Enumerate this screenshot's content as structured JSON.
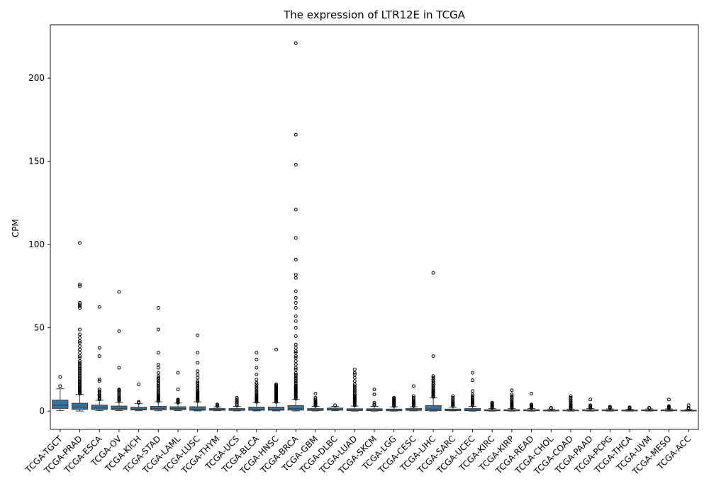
{
  "chart_data": {
    "type": "box",
    "title": "The expression of LTR12E in TCGA",
    "xlabel": "",
    "ylabel": "CPM",
    "ylim": [
      -11,
      232
    ],
    "yticks": [
      0,
      50,
      100,
      150,
      200
    ],
    "grid": false,
    "legend": "none",
    "box_color": "#3274a1",
    "categories": [
      "TCGA-TGCT",
      "TCGA-PRAD",
      "TCGA-ESCA",
      "TCGA-OV",
      "TCGA-KICH",
      "TCGA-STAD",
      "TCGA-LAML",
      "TCGA-LUSC",
      "TCGA-THYM",
      "TCGA-UCS",
      "TCGA-BLCA",
      "TCGA-HNSC",
      "TCGA-BRCA",
      "TCGA-GBM",
      "TCGA-DLBC",
      "TCGA-LUAD",
      "TCGA-SKCM",
      "TCGA-LGG",
      "TCGA-CESC",
      "TCGA-LIHC",
      "TCGA-SARC",
      "TCGA-UCEC",
      "TCGA-KIRC",
      "TCGA-KIRP",
      "TCGA-READ",
      "TCGA-CHOL",
      "TCGA-COAD",
      "TCGA-PAAD",
      "TCGA-PCPG",
      "TCGA-THCA",
      "TCGA-UVM",
      "TCGA-MESO",
      "TCGA-ACC"
    ],
    "boxes": [
      {
        "whislo": 0.3,
        "q1": 1.6,
        "med": 3.5,
        "q3": 6.6,
        "whishi": 13.4,
        "fliers": [
          15,
          20.5
        ]
      },
      {
        "whislo": 0.0,
        "q1": 1.0,
        "med": 2.5,
        "q3": 4.7,
        "whishi": 10.0,
        "fliers": [
          10.5,
          11,
          11.5,
          12,
          12.5,
          13,
          13.5,
          14,
          15,
          15.5,
          16,
          17,
          17.5,
          18,
          19,
          20,
          21,
          22,
          23,
          24,
          25,
          26,
          27,
          28,
          29,
          30,
          32,
          33,
          35,
          37,
          39,
          41,
          42,
          44,
          46,
          49,
          62,
          63,
          64,
          65,
          75,
          76,
          101
        ]
      },
      {
        "whislo": 0.3,
        "q1": 1.0,
        "med": 1.8,
        "q3": 3.6,
        "whishi": 6.5,
        "fliers": [
          7,
          7.5,
          8,
          9,
          9.5,
          10,
          11,
          12,
          13,
          18,
          19,
          33,
          38,
          62.5
        ]
      },
      {
        "whislo": 0.3,
        "q1": 0.9,
        "med": 1.6,
        "q3": 3.0,
        "whishi": 5.3,
        "fliers": [
          6,
          6.5,
          7,
          7.5,
          8,
          9,
          10,
          11,
          12,
          12.5,
          13,
          26,
          48,
          71.5
        ]
      },
      {
        "whislo": 0.2,
        "q1": 0.7,
        "med": 1.2,
        "q3": 2.3,
        "whishi": 4.5,
        "fliers": [
          5,
          5.5,
          16
        ]
      },
      {
        "whislo": 0.2,
        "q1": 0.8,
        "med": 1.5,
        "q3": 2.8,
        "whishi": 5.6,
        "fliers": [
          6,
          6.5,
          7,
          7.5,
          8,
          8.5,
          9,
          9.5,
          10,
          11,
          12,
          13,
          14,
          15,
          16,
          17,
          18,
          19,
          20,
          21,
          23,
          26,
          28,
          35,
          49,
          62
        ]
      },
      {
        "whislo": 0.3,
        "q1": 0.8,
        "med": 1.5,
        "q3": 2.6,
        "whishi": 4.8,
        "fliers": [
          5,
          5.5,
          6,
          6.5,
          7,
          13,
          23
        ]
      },
      {
        "whislo": 0.1,
        "q1": 0.5,
        "med": 1.2,
        "q3": 2.6,
        "whishi": 5.5,
        "fliers": [
          6,
          6.5,
          7,
          7.5,
          8,
          8.5,
          9,
          9.5,
          10,
          10.5,
          11,
          11.5,
          12,
          13,
          14,
          15,
          16,
          17,
          18,
          20,
          22,
          24,
          29,
          35,
          45.5
        ]
      },
      {
        "whislo": 0.2,
        "q1": 0.5,
        "med": 0.9,
        "q3": 1.5,
        "whishi": 2.5,
        "fliers": [
          3,
          3.5,
          4
        ]
      },
      {
        "whislo": 0.1,
        "q1": 0.4,
        "med": 0.8,
        "q3": 1.5,
        "whishi": 2.8,
        "fliers": [
          3.5,
          4,
          5,
          6,
          7,
          8
        ]
      },
      {
        "whislo": 0.1,
        "q1": 0.5,
        "med": 1.1,
        "q3": 2.4,
        "whishi": 5.0,
        "fliers": [
          5.5,
          6,
          6.5,
          7,
          7.5,
          8,
          8.5,
          9,
          9.5,
          10,
          11,
          12,
          13,
          14,
          15,
          16,
          17,
          19,
          22,
          26,
          31,
          35
        ]
      },
      {
        "whislo": 0.1,
        "q1": 0.5,
        "med": 1.1,
        "q3": 2.4,
        "whishi": 5.0,
        "fliers": [
          5.5,
          6,
          6.5,
          7,
          7.5,
          8,
          8.5,
          9,
          9.5,
          10,
          10.5,
          11,
          11.5,
          12,
          12.5,
          13,
          13.5,
          14,
          14.5,
          15,
          15.5,
          16,
          37
        ]
      },
      {
        "whislo": 0.1,
        "q1": 0.6,
        "med": 1.4,
        "q3": 3.3,
        "whishi": 7.0,
        "fliers": [
          7.5,
          8,
          8.5,
          9,
          9.5,
          10,
          10.5,
          11,
          11.5,
          12,
          12.5,
          13,
          13.5,
          14,
          14.5,
          15,
          16,
          17,
          18,
          19,
          20,
          21,
          22,
          23,
          25,
          26,
          28,
          30,
          32,
          33,
          35,
          36,
          38,
          40,
          45,
          50,
          54,
          57,
          62,
          65,
          68,
          72,
          80,
          82,
          91,
          104,
          121,
          148,
          166,
          221
        ]
      },
      {
        "whislo": 0.1,
        "q1": 0.4,
        "med": 0.8,
        "q3": 1.5,
        "whishi": 2.8,
        "fliers": [
          3.2,
          3.6,
          4,
          4.5,
          5,
          5.5,
          6,
          7,
          8,
          10.5
        ]
      },
      {
        "whislo": 0.2,
        "q1": 0.6,
        "med": 1.0,
        "q3": 1.8,
        "whishi": 2.8,
        "fliers": [
          3.5
        ]
      },
      {
        "whislo": 0.0,
        "q1": 0.3,
        "med": 0.7,
        "q3": 1.4,
        "whishi": 3.0,
        "fliers": [
          3.5,
          4,
          4.5,
          5,
          5.5,
          6,
          6.5,
          7,
          7.5,
          8,
          8.5,
          9,
          10,
          11,
          12,
          13,
          14,
          15,
          16,
          18,
          20,
          22,
          23,
          25
        ]
      },
      {
        "whislo": 0.0,
        "q1": 0.3,
        "med": 0.7,
        "q3": 1.4,
        "whishi": 2.8,
        "fliers": [
          3.5,
          4,
          5,
          10,
          13
        ]
      },
      {
        "whislo": 0.0,
        "q1": 0.2,
        "med": 0.6,
        "q3": 1.2,
        "whishi": 2.5,
        "fliers": [
          3,
          3.5,
          4,
          4.5,
          5,
          5.5,
          6,
          6.5,
          7,
          7.5,
          8
        ]
      },
      {
        "whislo": 0.1,
        "q1": 0.4,
        "med": 0.8,
        "q3": 1.5,
        "whishi": 2.5,
        "fliers": [
          3,
          3.5,
          4,
          4.5,
          5,
          5.5,
          6,
          7,
          8,
          9,
          15
        ]
      },
      {
        "whislo": 0.0,
        "q1": 0.3,
        "med": 1.2,
        "q3": 3.3,
        "whishi": 8.0,
        "fliers": [
          8.5,
          9,
          9.5,
          10,
          10.5,
          11,
          11.5,
          12,
          12.5,
          13,
          14,
          15,
          16,
          17,
          18,
          19,
          20,
          21,
          33,
          83
        ]
      },
      {
        "whislo": 0.1,
        "q1": 0.3,
        "med": 0.6,
        "q3": 1.2,
        "whishi": 2.3,
        "fliers": [
          3,
          3.5,
          4,
          4.5,
          5,
          6,
          7,
          8,
          9
        ]
      },
      {
        "whislo": 0.0,
        "q1": 0.3,
        "med": 0.7,
        "q3": 1.5,
        "whishi": 2.8,
        "fliers": [
          3.5,
          4,
          4.5,
          5,
          5.5,
          6,
          6.5,
          7,
          8,
          9,
          10,
          12,
          18.5,
          23
        ]
      },
      {
        "whislo": 0.0,
        "q1": 0.2,
        "med": 0.4,
        "q3": 0.8,
        "whishi": 1.5,
        "fliers": [
          2,
          2.5,
          3,
          3.5,
          4,
          4.5,
          5
        ]
      },
      {
        "whislo": 0.0,
        "q1": 0.2,
        "med": 0.4,
        "q3": 0.8,
        "whishi": 1.5,
        "fliers": [
          2,
          2.5,
          3,
          3.5,
          4,
          4.5,
          5,
          5.5,
          6,
          7,
          8,
          9,
          10,
          12.5
        ]
      },
      {
        "whislo": 0.0,
        "q1": 0.2,
        "med": 0.4,
        "q3": 0.8,
        "whishi": 1.5,
        "fliers": [
          2,
          2.5,
          3,
          3.5,
          4,
          10.5
        ]
      },
      {
        "whislo": 0.0,
        "q1": 0.1,
        "med": 0.3,
        "q3": 0.6,
        "whishi": 1.2,
        "fliers": [
          1.6,
          2
        ]
      },
      {
        "whislo": 0.0,
        "q1": 0.2,
        "med": 0.3,
        "q3": 0.6,
        "whishi": 1.2,
        "fliers": [
          1.6,
          2,
          2.5,
          3,
          3.5,
          4,
          5,
          6,
          7,
          8,
          9
        ]
      },
      {
        "whislo": 0.0,
        "q1": 0.2,
        "med": 0.4,
        "q3": 0.8,
        "whishi": 1.5,
        "fliers": [
          2,
          2.5,
          3,
          3.5,
          7
        ]
      },
      {
        "whislo": 0.0,
        "q1": 0.2,
        "med": 0.4,
        "q3": 0.7,
        "whishi": 1.3,
        "fliers": [
          1.8,
          2.2,
          2.6
        ]
      },
      {
        "whislo": 0.0,
        "q1": 0.1,
        "med": 0.3,
        "q3": 0.6,
        "whishi": 1.1,
        "fliers": [
          1.4,
          1.7,
          2,
          2.3
        ]
      },
      {
        "whislo": 0.0,
        "q1": 0.2,
        "med": 0.4,
        "q3": 0.7,
        "whishi": 1.3,
        "fliers": [
          1.7,
          2
        ]
      },
      {
        "whislo": 0.0,
        "q1": 0.2,
        "med": 0.4,
        "q3": 0.7,
        "whishi": 1.3,
        "fliers": [
          1.7,
          2.1,
          2.5,
          3,
          7
        ]
      },
      {
        "whislo": 0.0,
        "q1": 0.1,
        "med": 0.2,
        "q3": 0.5,
        "whishi": 0.9,
        "fliers": [
          1.4,
          2,
          3.5
        ]
      }
    ]
  }
}
